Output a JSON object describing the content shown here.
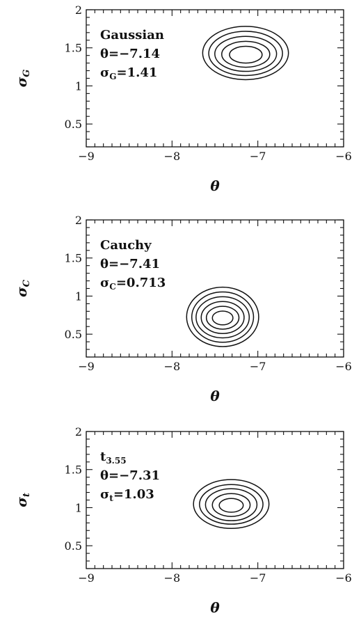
{
  "chart_data": [
    {
      "type": "contour",
      "id": "gaussian",
      "xlim": [
        -9,
        -6
      ],
      "ylim": [
        0.2,
        2.0
      ],
      "x_ticks": [
        "-9",
        "-8",
        "-7",
        "-6"
      ],
      "y_ticks": [
        "0.5",
        "1",
        "1.5",
        "2"
      ],
      "xlabel": "θ",
      "ylabel_main": "σ",
      "ylabel_sub": "G",
      "annotation": [
        {
          "main": "Gaussian",
          "sub": "",
          "rest": ""
        },
        {
          "main": "θ=−7.14",
          "sub": "",
          "rest": ""
        },
        {
          "main": "σ",
          "sub": "G",
          "rest": "=1.41"
        }
      ],
      "contour_center": {
        "x": -7.14,
        "y": 1.41
      },
      "contour_semi_axes": [
        {
          "dx": 0.19,
          "dy": 0.11
        },
        {
          "dx": 0.28,
          "dy": 0.17
        },
        {
          "dx": 0.36,
          "dy": 0.23
        },
        {
          "dx": 0.43,
          "dy": 0.29
        },
        {
          "dx": 0.5,
          "dy": 0.35
        }
      ],
      "contour_center_shift": {
        "x": -0.003,
        "y": 0.022
      }
    },
    {
      "type": "contour",
      "id": "cauchy",
      "xlim": [
        -9,
        -6
      ],
      "ylim": [
        0.2,
        2.0
      ],
      "x_ticks": [
        "-9",
        "-8",
        "-7",
        "-6"
      ],
      "y_ticks": [
        "0.5",
        "1",
        "1.5",
        "2"
      ],
      "xlabel": "θ",
      "ylabel_main": "σ",
      "ylabel_sub": "C",
      "annotation": [
        {
          "main": "Cauchy",
          "sub": "",
          "rest": ""
        },
        {
          "main": "θ=−7.41",
          "sub": "",
          "rest": ""
        },
        {
          "main": "σ",
          "sub": "C",
          "rest": "=0.713"
        }
      ],
      "contour_center": {
        "x": -7.41,
        "y": 0.713
      },
      "contour_semi_axes": [
        {
          "dx": 0.12,
          "dy": 0.09
        },
        {
          "dx": 0.19,
          "dy": 0.15
        },
        {
          "dx": 0.25,
          "dy": 0.21
        },
        {
          "dx": 0.31,
          "dy": 0.27
        },
        {
          "dx": 0.36,
          "dy": 0.33
        },
        {
          "dx": 0.42,
          "dy": 0.39
        }
      ],
      "contour_center_shift": {
        "x": 0.0,
        "y": 0.014
      }
    },
    {
      "type": "contour",
      "id": "student-t",
      "xlim": [
        -9,
        -6
      ],
      "ylim": [
        0.2,
        2.0
      ],
      "x_ticks": [
        "-9",
        "-8",
        "-7",
        "-6"
      ],
      "y_ticks": [
        "0.5",
        "1",
        "1.5",
        "2"
      ],
      "xlabel": "θ",
      "ylabel_main": "σ",
      "ylabel_sub": "t",
      "annotation": [
        {
          "main": "t",
          "sub": "3.55",
          "rest": ""
        },
        {
          "main": "θ=−7.31",
          "sub": "",
          "rest": ""
        },
        {
          "main": "σ",
          "sub": "t",
          "rest": "=1.03"
        }
      ],
      "contour_center": {
        "x": -7.31,
        "y": 1.03
      },
      "contour_semi_axes": [
        {
          "dx": 0.14,
          "dy": 0.09
        },
        {
          "dx": 0.22,
          "dy": 0.15
        },
        {
          "dx": 0.3,
          "dy": 0.21
        },
        {
          "dx": 0.37,
          "dy": 0.26
        },
        {
          "dx": 0.44,
          "dy": 0.32
        }
      ],
      "contour_center_shift": {
        "x": 0.0,
        "y": 0.018
      }
    }
  ]
}
